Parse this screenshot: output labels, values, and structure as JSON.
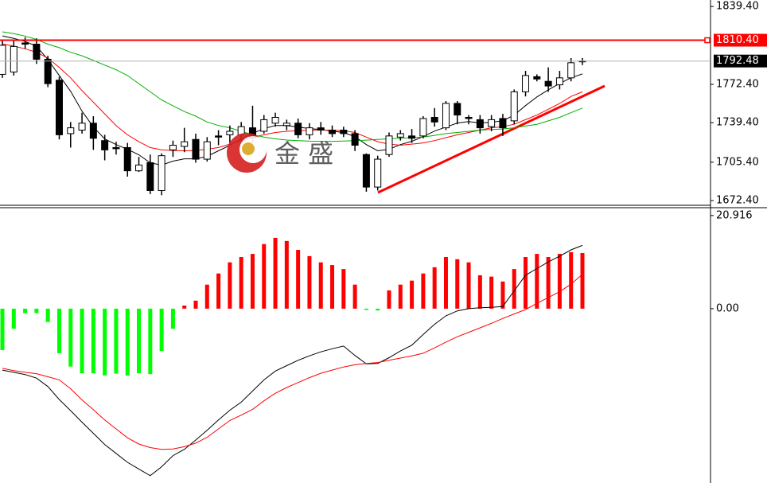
{
  "chart_data": [
    {
      "type": "candlestick",
      "open": [
        1781,
        1783,
        1808,
        1807,
        1794,
        1776,
        1730,
        1733,
        1739,
        1724,
        1718,
        1718,
        1698,
        1705,
        1681,
        1716,
        1719,
        1725,
        1708,
        1728,
        1729,
        1729,
        1735,
        1732,
        1739,
        1737,
        1739,
        1729,
        1735,
        1733,
        1733,
        1730,
        1712,
        1684,
        1712,
        1727,
        1728,
        1728,
        1744,
        1735,
        1756,
        1744,
        1742,
        1736,
        1743,
        1741,
        1766,
        1779,
        1775,
        1772,
        1778,
        1792
      ],
      "high": [
        1810,
        1810,
        1813,
        1812,
        1797,
        1779,
        1740,
        1748,
        1745,
        1729,
        1723,
        1722,
        1710,
        1712,
        1713,
        1724,
        1735,
        1730,
        1727,
        1733,
        1737,
        1740,
        1754,
        1746,
        1748,
        1742,
        1743,
        1739,
        1740,
        1737,
        1736,
        1733,
        1713,
        1711,
        1731,
        1733,
        1734,
        1745,
        1752,
        1758,
        1758,
        1746,
        1746,
        1746,
        1747,
        1768,
        1784,
        1781,
        1787,
        1784,
        1795,
        1795
      ],
      "low": [
        1778,
        1780,
        1803,
        1790,
        1770,
        1725,
        1718,
        1730,
        1716,
        1707,
        1712,
        1693,
        1697,
        1678,
        1677,
        1710,
        1714,
        1705,
        1706,
        1720,
        1722,
        1724,
        1722,
        1730,
        1736,
        1733,
        1726,
        1725,
        1729,
        1727,
        1727,
        1715,
        1680,
        1681,
        1710,
        1724,
        1722,
        1726,
        1736,
        1733,
        1738,
        1738,
        1730,
        1732,
        1728,
        1738,
        1762,
        1775,
        1766,
        1768,
        1775,
        1789
      ],
      "close": [
        1806,
        1805,
        1807,
        1794,
        1773,
        1729,
        1735,
        1739,
        1726,
        1716,
        1717,
        1698,
        1703,
        1681,
        1711,
        1720,
        1723,
        1708,
        1723,
        1727,
        1732,
        1736,
        1726,
        1742,
        1744,
        1739,
        1729,
        1735,
        1733,
        1730,
        1730,
        1720,
        1684,
        1708,
        1728,
        1730,
        1726,
        1743,
        1740,
        1756,
        1746,
        1743,
        1735,
        1742,
        1735,
        1766,
        1780,
        1777,
        1771,
        1778,
        1791,
        1792.48
      ],
      "up_color": "#ffffff",
      "down_color": "#000000",
      "series": [
        {
          "color": "#000000",
          "values": [
            1814.1,
            1812,
            1809.3,
            1805.3,
            1793.7,
            1780,
            1766.4,
            1749.3,
            1735.6,
            1725.4,
            1720.6,
            1716.5,
            1711.8,
            1704.9,
            1702.9,
            1706.3,
            1708.3,
            1708.3,
            1710.4,
            1715.2,
            1719.9,
            1725.4,
            1730.2,
            1734.3,
            1737,
            1737,
            1735.6,
            1734.3,
            1733.6,
            1732.2,
            1730.9,
            1727.4,
            1720.6,
            1715.2,
            1716.5,
            1720.6,
            1723.4,
            1727.4,
            1732.2,
            1735.6,
            1739.1,
            1740.4,
            1739.1,
            1739.8,
            1741.1,
            1745.9,
            1754.1,
            1761.6,
            1767.7,
            1773.2,
            1778,
            1781.4
          ]
        },
        {
          "color": "#ff0000",
          "values": [
            1807.3,
            1805.3,
            1803,
            1800,
            1795,
            1787,
            1778,
            1767,
            1757,
            1747,
            1737,
            1729,
            1723,
            1718,
            1716,
            1715.5,
            1715.2,
            1715.5,
            1716.5,
            1718,
            1721,
            1724,
            1727,
            1729,
            1731,
            1732,
            1732.5,
            1733,
            1733,
            1733,
            1732.5,
            1731,
            1727,
            1723,
            1721,
            1720,
            1721,
            1722,
            1724,
            1726.5,
            1729,
            1731,
            1733,
            1735,
            1736,
            1738,
            1742,
            1746,
            1751,
            1756,
            1762,
            1766
          ]
        },
        {
          "color": "#00b000",
          "values": [
            1817.6,
            1816,
            1814,
            1811,
            1807,
            1804,
            1800,
            1797,
            1793,
            1789,
            1785,
            1780,
            1773,
            1766,
            1759,
            1754,
            1749,
            1745,
            1740,
            1737,
            1735,
            1732,
            1729,
            1727,
            1725.5,
            1724.5,
            1724,
            1723.5,
            1723.4,
            1723.4,
            1723.6,
            1724,
            1724.4,
            1725,
            1725.5,
            1726,
            1726.5,
            1727,
            1728.5,
            1730,
            1731,
            1732,
            1733,
            1733.5,
            1734,
            1735,
            1736.5,
            1738,
            1741,
            1744,
            1748,
            1752
          ]
        }
      ],
      "ylim": [
        1669,
        1845
      ],
      "yticks": [
        {
          "value": 1839.4,
          "label": "1839.40"
        },
        {
          "value": 1772.4,
          "label": "1772.40"
        },
        {
          "value": 1739.4,
          "label": "1739.40"
        },
        {
          "value": 1705.4,
          "label": "1705.40"
        },
        {
          "value": 1672.4,
          "label": "1672.40"
        }
      ],
      "hlines": [
        {
          "value": 1810.4,
          "label": "1810.40",
          "color": "#ff0000"
        }
      ],
      "last_price": 1792.48
    },
    {
      "type": "macd",
      "histogram": {
        "values": [
          -9.3,
          -4.5,
          -1,
          -1,
          -3,
          -10,
          -13,
          -14.5,
          -14.5,
          -15,
          -14.6,
          -15,
          -14.5,
          -14.7,
          -9.5,
          -4.5,
          0.7,
          1.8,
          5.4,
          7.9,
          10.4,
          11.6,
          12.3,
          14.5,
          15.9,
          15.2,
          13.2,
          11.8,
          10.4,
          9.8,
          8.9,
          5.4,
          -0.3,
          -0.4,
          4.1,
          5.4,
          6.3,
          7.9,
          9.3,
          11.6,
          11.1,
          10.4,
          7.5,
          7.2,
          6.1,
          8.9,
          11.6,
          12.3,
          11.6,
          12.3,
          12.7,
          12.5
        ],
        "color": "#ff0000",
        "negative_color": "#00ff00"
      },
      "series": [
        {
          "color": "#000000",
          "values": [
            -13.8,
            -14.3,
            -14.8,
            -15.6,
            -17.5,
            -20.4,
            -22.9,
            -25.5,
            -28,
            -30.5,
            -32.5,
            -34.5,
            -36,
            -37.5,
            -35.5,
            -33,
            -31.6,
            -29.5,
            -27.3,
            -25,
            -22.8,
            -21,
            -18.5,
            -16,
            -14,
            -12.8,
            -11.6,
            -10.6,
            -9.7,
            -9,
            -8.4,
            -10.5,
            -12.4,
            -12.3,
            -11,
            -9.5,
            -8.2,
            -5.8,
            -3.5,
            -1.6,
            -0.5,
            0,
            0.2,
            0.3,
            0.5,
            4,
            7.5,
            9,
            10.5,
            11.8,
            13.2,
            14.2
          ]
        },
        {
          "color": "#ff0000",
          "values": [
            -13.4,
            -13.9,
            -14.3,
            -14.6,
            -15.3,
            -16,
            -18,
            -20.5,
            -22.7,
            -25,
            -27,
            -29,
            -30.4,
            -31.2,
            -31.6,
            -31.5,
            -31,
            -30.2,
            -28.9,
            -27,
            -25.1,
            -23.9,
            -22.6,
            -20.7,
            -19,
            -17.7,
            -16.6,
            -15.5,
            -14.5,
            -13.8,
            -13.1,
            -12.6,
            -12.3,
            -12.1,
            -11.6,
            -11.1,
            -10.6,
            -10,
            -8.8,
            -7.5,
            -6.3,
            -5.3,
            -4.3,
            -3.3,
            -2.2,
            -1.2,
            -0.2,
            1.2,
            2.5,
            3.8,
            5.5,
            7.7
          ]
        }
      ],
      "ylim": [
        -37.9,
        22.5
      ],
      "yticks": [
        20.916,
        {
          "value": 0,
          "label": "0.00"
        }
      ]
    }
  ],
  "watermark": "金 盛"
}
